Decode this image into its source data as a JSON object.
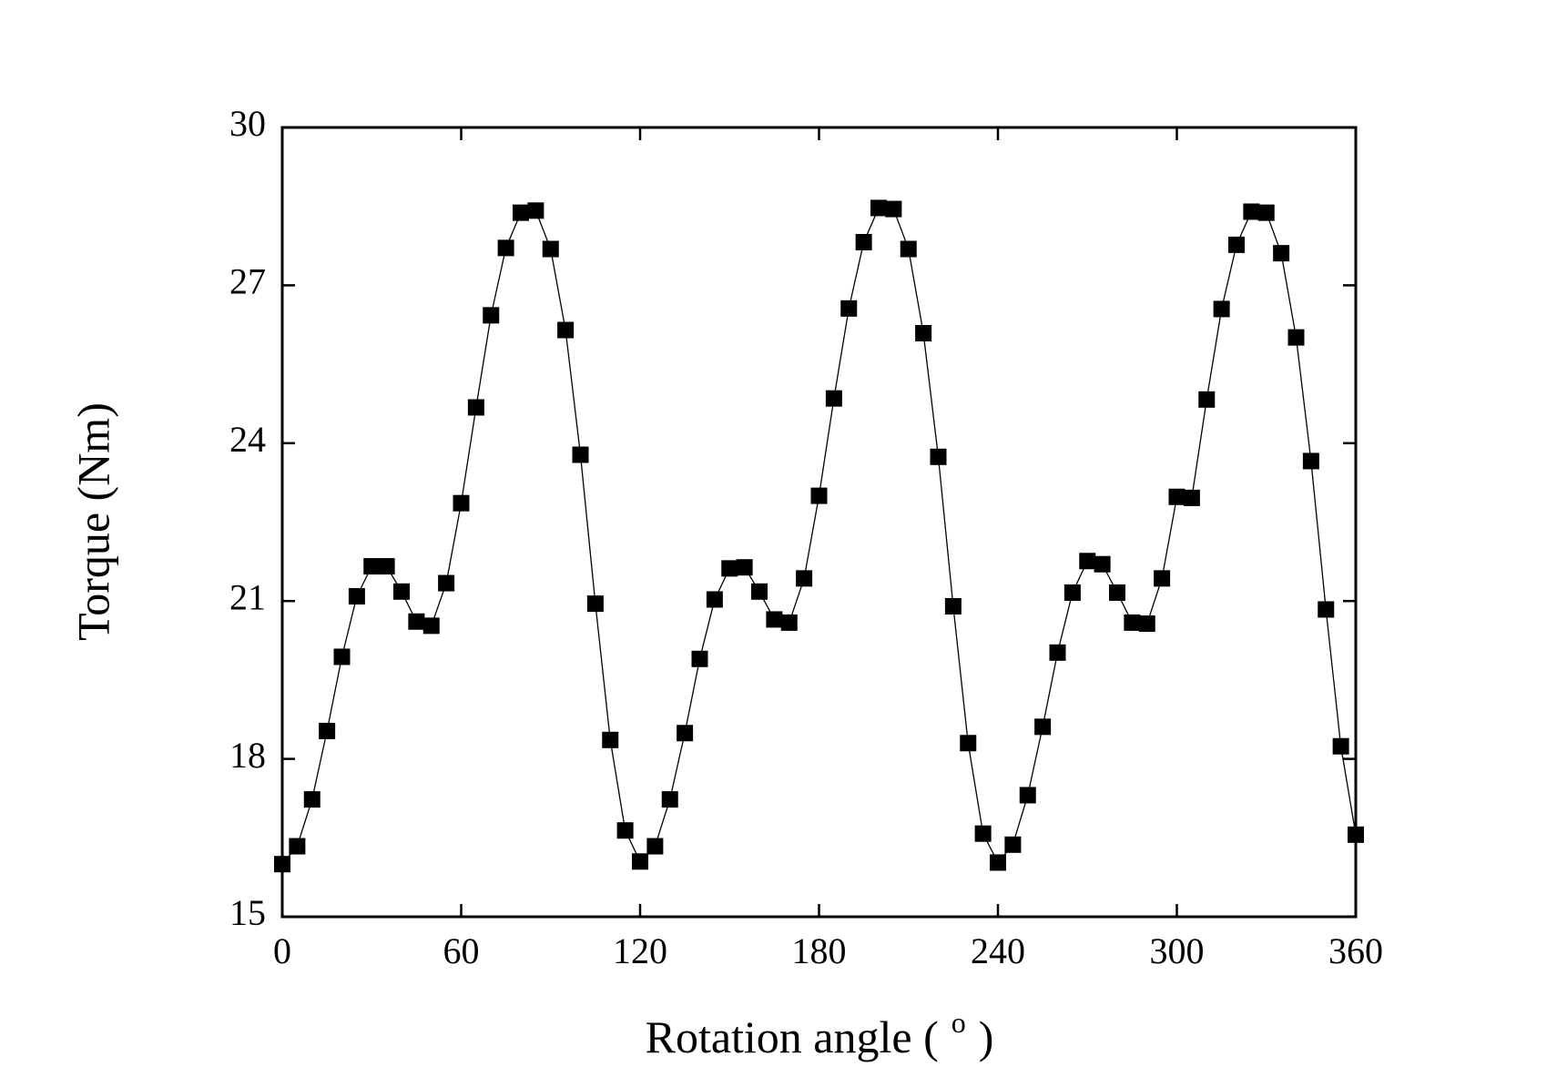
{
  "chart_data": {
    "type": "line",
    "xlabel_parts": [
      "Rotation angle (",
      "o",
      ")"
    ],
    "ylabel": "Torque (Nm)",
    "xlim": [
      0,
      360
    ],
    "xticks": [
      0,
      60,
      120,
      180,
      240,
      300,
      360
    ],
    "ylim": [
      15,
      30
    ],
    "yticks": [
      15,
      18,
      21,
      24,
      27,
      30
    ],
    "series": [
      {
        "color": "#000000",
        "marker": "square",
        "x": [
          0,
          5,
          10,
          15,
          20,
          25,
          30,
          35,
          40,
          45,
          50,
          55,
          60,
          65,
          70,
          75,
          80,
          85,
          90,
          95,
          100,
          105,
          110,
          115,
          120,
          125,
          130,
          135,
          140,
          145,
          150,
          155,
          160,
          165,
          170,
          175,
          180,
          185,
          190,
          195,
          200,
          205,
          210,
          215,
          220,
          225,
          230,
          235,
          240,
          245,
          250,
          255,
          260,
          265,
          270,
          275,
          280,
          285,
          290,
          295,
          300,
          305,
          310,
          315,
          320,
          325,
          330,
          335,
          340,
          345,
          350,
          355,
          360
        ],
        "values": [
          16.0,
          16.34,
          17.23,
          18.53,
          19.94,
          21.09,
          21.66,
          21.66,
          21.18,
          20.61,
          20.53,
          21.34,
          22.86,
          24.68,
          26.43,
          27.71,
          28.38,
          28.42,
          27.69,
          26.15,
          23.78,
          20.95,
          18.36,
          16.64,
          16.05,
          16.34,
          17.23,
          18.49,
          19.9,
          21.03,
          21.62,
          21.64,
          21.18,
          20.65,
          20.59,
          21.43,
          23.0,
          24.85,
          26.56,
          27.82,
          28.47,
          28.45,
          27.69,
          26.09,
          23.74,
          20.9,
          18.3,
          16.58,
          16.03,
          16.37,
          17.31,
          18.61,
          20.02,
          21.16,
          21.76,
          21.7,
          21.16,
          20.59,
          20.57,
          21.43,
          22.98,
          22.96,
          24.83,
          26.55,
          27.77,
          28.4,
          28.38,
          27.61,
          26.01,
          23.66,
          20.84,
          18.24,
          16.56
        ]
      }
    ]
  }
}
